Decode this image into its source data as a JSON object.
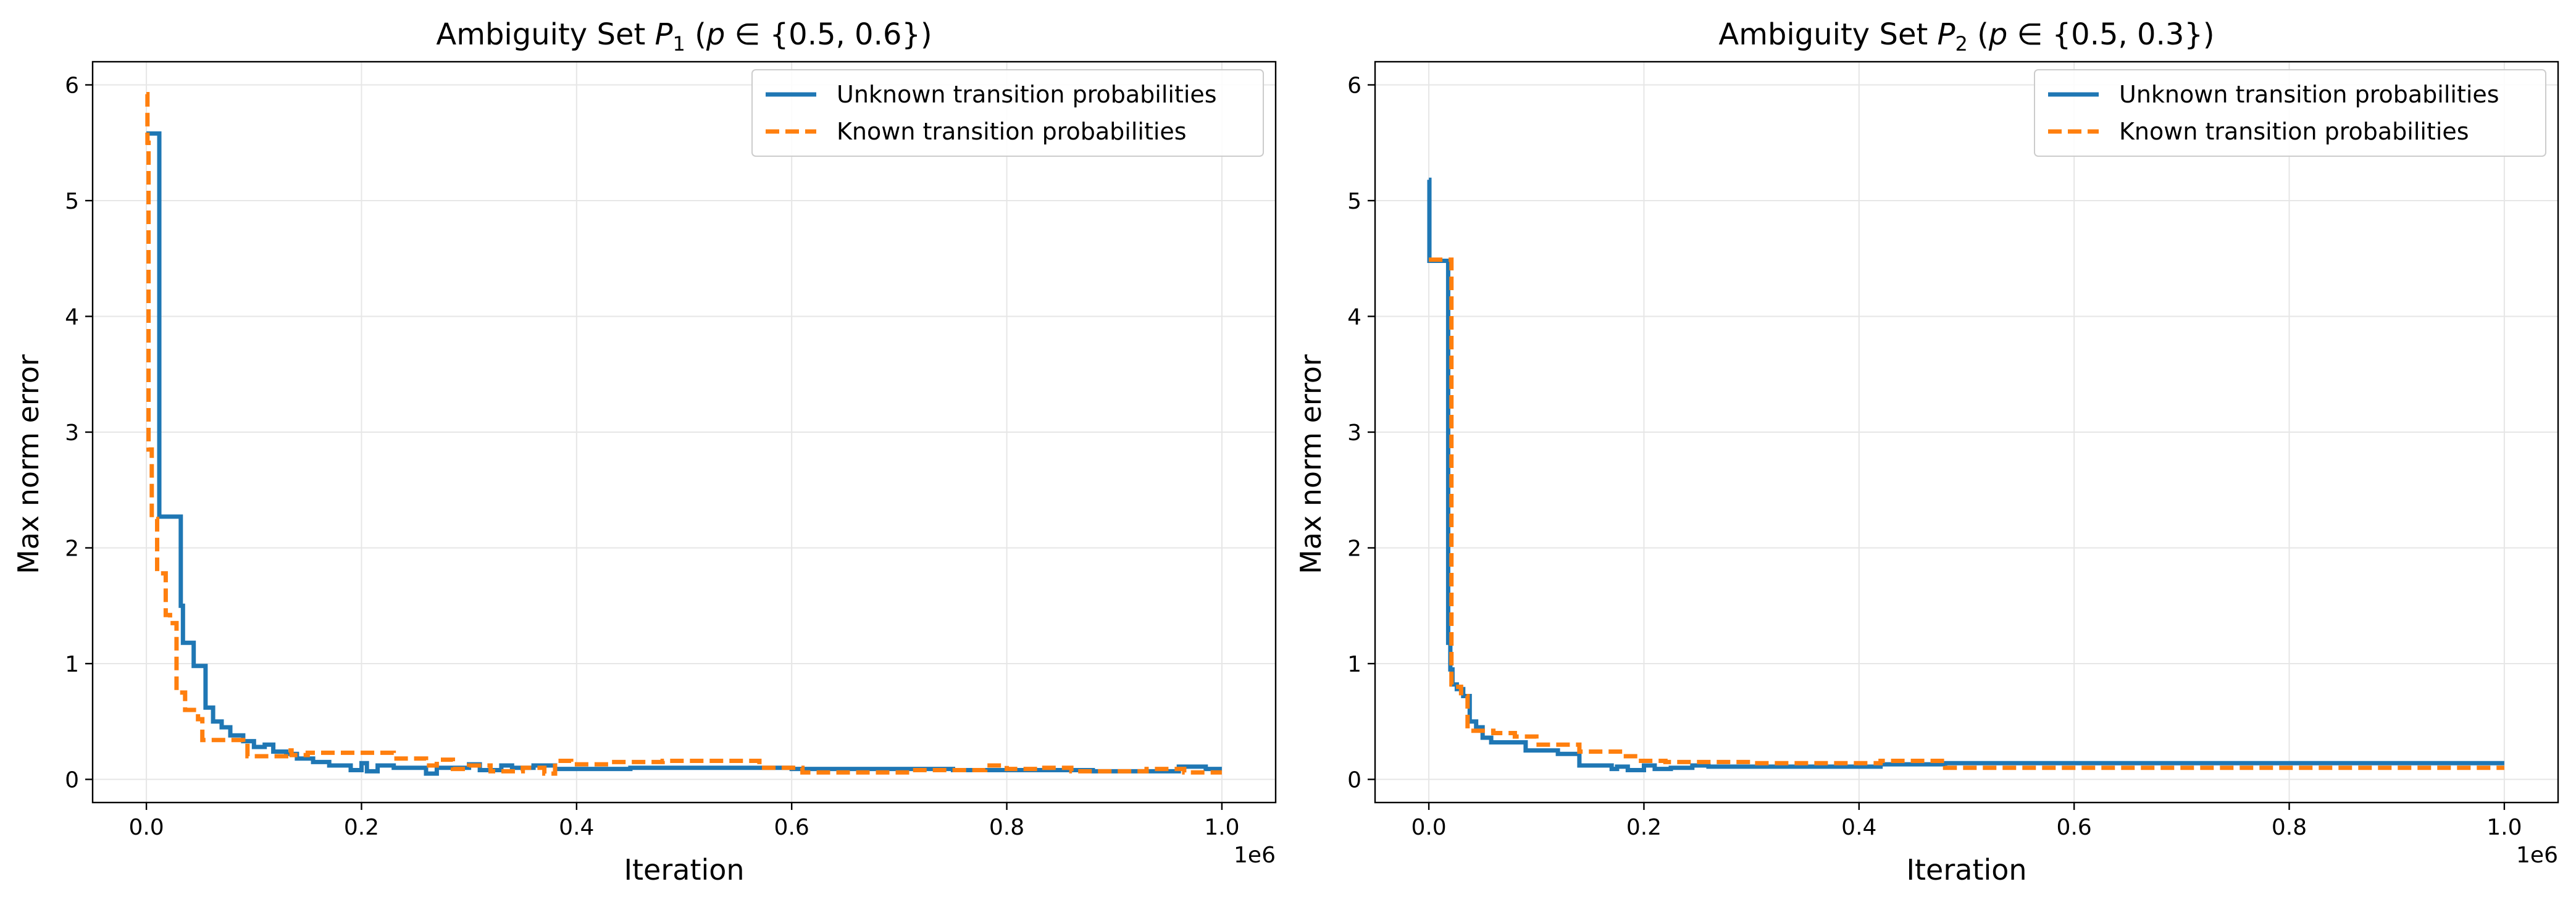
{
  "figure": {
    "colors": {
      "unknown": "#1f77b4",
      "known": "#ff7f0e",
      "grid": "#e6e6e6",
      "frame": "#000000"
    }
  },
  "chart_data": [
    {
      "type": "line",
      "title": "Ambiguity Set P1 (p ∈ {0.5, 0.6})",
      "title_parts": {
        "pre": "Ambiguity Set ",
        "var": "P",
        "sub": "1",
        "post": " (",
        "p": "p",
        "set": " ∈ {0.5, 0.6})"
      },
      "xlabel": "Iteration",
      "ylabel": "Max norm error",
      "x_offset_label": "1e6",
      "xlim": [
        -0.05,
        1.05
      ],
      "ylim": [
        -0.2,
        6.2
      ],
      "xticks": [
        0.0,
        0.2,
        0.4,
        0.6,
        0.8,
        1.0
      ],
      "xtick_labels": [
        "0.0",
        "0.2",
        "0.4",
        "0.6",
        "0.8",
        "1.0"
      ],
      "yticks": [
        0,
        1,
        2,
        3,
        4,
        5,
        6
      ],
      "ytick_labels": [
        "0",
        "1",
        "2",
        "3",
        "4",
        "5",
        "6"
      ],
      "grid": true,
      "legend": "top-right",
      "series": [
        {
          "name": "Unknown transition probabilities",
          "style": "solid",
          "points": [
            [
              0.0,
              5.58
            ],
            [
              0.012,
              5.58
            ],
            [
              0.012,
              2.27
            ],
            [
              0.032,
              2.27
            ],
            [
              0.032,
              1.5
            ],
            [
              0.034,
              1.5
            ],
            [
              0.034,
              1.18
            ],
            [
              0.044,
              1.18
            ],
            [
              0.044,
              0.98
            ],
            [
              0.055,
              0.98
            ],
            [
              0.055,
              0.62
            ],
            [
              0.062,
              0.62
            ],
            [
              0.062,
              0.5
            ],
            [
              0.07,
              0.5
            ],
            [
              0.07,
              0.45
            ],
            [
              0.078,
              0.45
            ],
            [
              0.078,
              0.38
            ],
            [
              0.09,
              0.38
            ],
            [
              0.09,
              0.33
            ],
            [
              0.1,
              0.33
            ],
            [
              0.1,
              0.28
            ],
            [
              0.11,
              0.28
            ],
            [
              0.11,
              0.3
            ],
            [
              0.118,
              0.3
            ],
            [
              0.118,
              0.24
            ],
            [
              0.13,
              0.24
            ],
            [
              0.13,
              0.22
            ],
            [
              0.14,
              0.22
            ],
            [
              0.14,
              0.18
            ],
            [
              0.155,
              0.18
            ],
            [
              0.155,
              0.15
            ],
            [
              0.17,
              0.15
            ],
            [
              0.17,
              0.12
            ],
            [
              0.19,
              0.12
            ],
            [
              0.19,
              0.08
            ],
            [
              0.2,
              0.08
            ],
            [
              0.2,
              0.14
            ],
            [
              0.205,
              0.14
            ],
            [
              0.205,
              0.07
            ],
            [
              0.215,
              0.07
            ],
            [
              0.215,
              0.12
            ],
            [
              0.23,
              0.12
            ],
            [
              0.23,
              0.1
            ],
            [
              0.26,
              0.1
            ],
            [
              0.26,
              0.05
            ],
            [
              0.27,
              0.05
            ],
            [
              0.27,
              0.1
            ],
            [
              0.3,
              0.1
            ],
            [
              0.3,
              0.13
            ],
            [
              0.31,
              0.13
            ],
            [
              0.31,
              0.08
            ],
            [
              0.33,
              0.08
            ],
            [
              0.33,
              0.12
            ],
            [
              0.34,
              0.12
            ],
            [
              0.34,
              0.1
            ],
            [
              0.36,
              0.1
            ],
            [
              0.36,
              0.12
            ],
            [
              0.38,
              0.12
            ],
            [
              0.38,
              0.09
            ],
            [
              0.45,
              0.09
            ],
            [
              0.45,
              0.1
            ],
            [
              0.6,
              0.1
            ],
            [
              0.6,
              0.09
            ],
            [
              0.75,
              0.09
            ],
            [
              0.75,
              0.08
            ],
            [
              0.88,
              0.08
            ],
            [
              0.88,
              0.07
            ],
            [
              0.96,
              0.07
            ],
            [
              0.96,
              0.11
            ],
            [
              0.985,
              0.11
            ],
            [
              0.985,
              0.09
            ],
            [
              1.0,
              0.09
            ]
          ]
        },
        {
          "name": "Known transition probabilities",
          "style": "dashed",
          "points": [
            [
              0.0,
              5.92
            ],
            [
              0.001,
              5.92
            ],
            [
              0.001,
              5.5
            ],
            [
              0.002,
              5.5
            ],
            [
              0.002,
              2.85
            ],
            [
              0.005,
              2.85
            ],
            [
              0.005,
              2.25
            ],
            [
              0.01,
              2.25
            ],
            [
              0.01,
              1.78
            ],
            [
              0.018,
              1.78
            ],
            [
              0.018,
              1.42
            ],
            [
              0.022,
              1.42
            ],
            [
              0.022,
              1.35
            ],
            [
              0.028,
              1.35
            ],
            [
              0.028,
              0.75
            ],
            [
              0.036,
              0.75
            ],
            [
              0.036,
              0.6
            ],
            [
              0.048,
              0.6
            ],
            [
              0.048,
              0.52
            ],
            [
              0.052,
              0.52
            ],
            [
              0.052,
              0.34
            ],
            [
              0.09,
              0.34
            ],
            [
              0.09,
              0.31
            ],
            [
              0.094,
              0.31
            ],
            [
              0.094,
              0.2
            ],
            [
              0.13,
              0.2
            ],
            [
              0.13,
              0.25
            ],
            [
              0.135,
              0.25
            ],
            [
              0.135,
              0.21
            ],
            [
              0.15,
              0.21
            ],
            [
              0.15,
              0.23
            ],
            [
              0.23,
              0.23
            ],
            [
              0.23,
              0.18
            ],
            [
              0.26,
              0.18
            ],
            [
              0.26,
              0.12
            ],
            [
              0.27,
              0.12
            ],
            [
              0.27,
              0.17
            ],
            [
              0.285,
              0.17
            ],
            [
              0.285,
              0.09
            ],
            [
              0.3,
              0.09
            ],
            [
              0.3,
              0.12
            ],
            [
              0.32,
              0.12
            ],
            [
              0.32,
              0.07
            ],
            [
              0.35,
              0.07
            ],
            [
              0.35,
              0.1
            ],
            [
              0.37,
              0.1
            ],
            [
              0.37,
              0.05
            ],
            [
              0.38,
              0.05
            ],
            [
              0.38,
              0.16
            ],
            [
              0.395,
              0.16
            ],
            [
              0.395,
              0.13
            ],
            [
              0.43,
              0.13
            ],
            [
              0.43,
              0.15
            ],
            [
              0.48,
              0.15
            ],
            [
              0.48,
              0.16
            ],
            [
              0.57,
              0.16
            ],
            [
              0.57,
              0.1
            ],
            [
              0.61,
              0.1
            ],
            [
              0.61,
              0.06
            ],
            [
              0.71,
              0.06
            ],
            [
              0.71,
              0.08
            ],
            [
              0.78,
              0.08
            ],
            [
              0.78,
              0.12
            ],
            [
              0.8,
              0.12
            ],
            [
              0.8,
              0.09
            ],
            [
              0.83,
              0.09
            ],
            [
              0.83,
              0.1
            ],
            [
              0.86,
              0.1
            ],
            [
              0.86,
              0.07
            ],
            [
              0.93,
              0.07
            ],
            [
              0.93,
              0.09
            ],
            [
              0.965,
              0.09
            ],
            [
              0.965,
              0.06
            ],
            [
              1.0,
              0.06
            ]
          ]
        }
      ]
    },
    {
      "type": "line",
      "title": "Ambiguity Set P2 (p ∈ {0.5, 0.3})",
      "title_parts": {
        "pre": "Ambiguity Set ",
        "var": "P",
        "sub": "2",
        "post": " (",
        "p": "p",
        "set": " ∈ {0.5, 0.3})"
      },
      "xlabel": "Iteration",
      "ylabel": "Max norm error",
      "x_offset_label": "1e6",
      "xlim": [
        -0.05,
        1.05
      ],
      "ylim": [
        -0.2,
        6.2
      ],
      "xticks": [
        0.0,
        0.2,
        0.4,
        0.6,
        0.8,
        1.0
      ],
      "xtick_labels": [
        "0.0",
        "0.2",
        "0.4",
        "0.6",
        "0.8",
        "1.0"
      ],
      "yticks": [
        0,
        1,
        2,
        3,
        4,
        5,
        6
      ],
      "ytick_labels": [
        "0",
        "1",
        "2",
        "3",
        "4",
        "5",
        "6"
      ],
      "grid": true,
      "legend": "top-right",
      "series": [
        {
          "name": "Unknown transition probabilities",
          "style": "solid",
          "points": [
            [
              0.0,
              5.18
            ],
            [
              0.0005,
              5.18
            ],
            [
              0.0005,
              4.48
            ],
            [
              0.018,
              4.48
            ],
            [
              0.018,
              1.18
            ],
            [
              0.02,
              1.18
            ],
            [
              0.02,
              0.95
            ],
            [
              0.022,
              0.95
            ],
            [
              0.022,
              0.82
            ],
            [
              0.026,
              0.82
            ],
            [
              0.026,
              0.78
            ],
            [
              0.032,
              0.78
            ],
            [
              0.032,
              0.72
            ],
            [
              0.038,
              0.72
            ],
            [
              0.038,
              0.5
            ],
            [
              0.044,
              0.5
            ],
            [
              0.044,
              0.45
            ],
            [
              0.05,
              0.45
            ],
            [
              0.05,
              0.36
            ],
            [
              0.058,
              0.36
            ],
            [
              0.058,
              0.32
            ],
            [
              0.09,
              0.32
            ],
            [
              0.09,
              0.25
            ],
            [
              0.12,
              0.25
            ],
            [
              0.12,
              0.22
            ],
            [
              0.14,
              0.22
            ],
            [
              0.14,
              0.12
            ],
            [
              0.17,
              0.12
            ],
            [
              0.17,
              0.09
            ],
            [
              0.175,
              0.09
            ],
            [
              0.175,
              0.11
            ],
            [
              0.185,
              0.11
            ],
            [
              0.185,
              0.08
            ],
            [
              0.2,
              0.08
            ],
            [
              0.2,
              0.12
            ],
            [
              0.21,
              0.12
            ],
            [
              0.21,
              0.09
            ],
            [
              0.225,
              0.09
            ],
            [
              0.225,
              0.1
            ],
            [
              0.245,
              0.1
            ],
            [
              0.245,
              0.12
            ],
            [
              0.26,
              0.12
            ],
            [
              0.26,
              0.11
            ],
            [
              0.42,
              0.11
            ],
            [
              0.42,
              0.13
            ],
            [
              0.48,
              0.13
            ],
            [
              0.48,
              0.14
            ],
            [
              1.0,
              0.14
            ]
          ]
        },
        {
          "name": "Known transition probabilities",
          "style": "dashed",
          "points": [
            [
              0.0,
              4.49
            ],
            [
              0.021,
              4.49
            ],
            [
              0.021,
              0.82
            ],
            [
              0.024,
              0.82
            ],
            [
              0.024,
              0.8
            ],
            [
              0.03,
              0.8
            ],
            [
              0.03,
              0.72
            ],
            [
              0.036,
              0.72
            ],
            [
              0.036,
              0.42
            ],
            [
              0.06,
              0.42
            ],
            [
              0.06,
              0.4
            ],
            [
              0.08,
              0.4
            ],
            [
              0.08,
              0.37
            ],
            [
              0.1,
              0.37
            ],
            [
              0.1,
              0.3
            ],
            [
              0.14,
              0.3
            ],
            [
              0.14,
              0.24
            ],
            [
              0.18,
              0.24
            ],
            [
              0.18,
              0.2
            ],
            [
              0.195,
              0.2
            ],
            [
              0.195,
              0.16
            ],
            [
              0.22,
              0.16
            ],
            [
              0.22,
              0.15
            ],
            [
              0.3,
              0.15
            ],
            [
              0.3,
              0.14
            ],
            [
              0.42,
              0.14
            ],
            [
              0.42,
              0.16
            ],
            [
              0.48,
              0.16
            ],
            [
              0.48,
              0.1
            ],
            [
              1.0,
              0.1
            ]
          ]
        }
      ]
    }
  ]
}
